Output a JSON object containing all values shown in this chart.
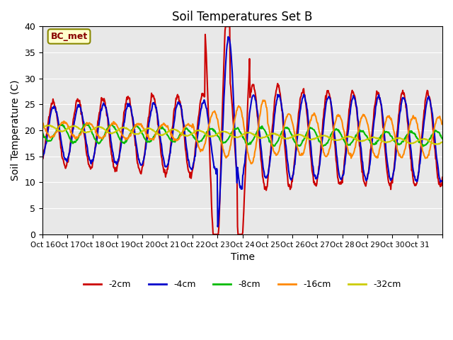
{
  "title": "Soil Temperatures Set B",
  "xlabel": "Time",
  "ylabel": "Soil Temperature (C)",
  "annotation": "BC_met",
  "ylim": [
    0,
    40
  ],
  "yticks": [
    0,
    5,
    10,
    15,
    20,
    25,
    30,
    35,
    40
  ],
  "xtick_labels": [
    "Oct 16",
    "Oct 17",
    "Oct 18",
    "Oct 19",
    "Oct 20",
    "Oct 21",
    "Oct 22",
    "Oct 23",
    "Oct 24",
    "Oct 25",
    "Oct 26",
    "Oct 27",
    "Oct 28",
    "Oct 29",
    "Oct 30",
    "Oct 31"
  ],
  "series": {
    "-2cm": {
      "color": "#cc0000",
      "lw": 1.5
    },
    "-4cm": {
      "color": "#0000cc",
      "lw": 1.5
    },
    "-8cm": {
      "color": "#00bb00",
      "lw": 1.5
    },
    "-16cm": {
      "color": "#ff8800",
      "lw": 1.5
    },
    "-32cm": {
      "color": "#cccc00",
      "lw": 1.5
    }
  },
  "legend_order": [
    "-2cm",
    "-4cm",
    "-8cm",
    "-16cm",
    "-32cm"
  ],
  "bg_color": "#e8e8e8",
  "fig_bg": "#ffffff"
}
